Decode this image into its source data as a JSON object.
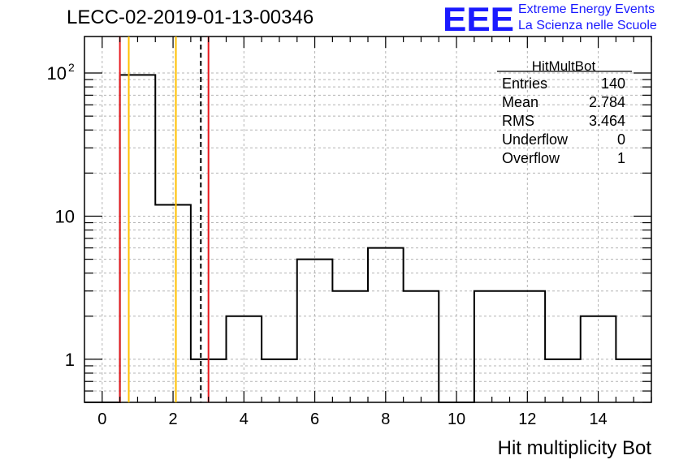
{
  "header": {
    "run_title": "LECC-02-2019-01-13-00346",
    "logo_mark": "EEE",
    "logo_line1": "Extreme Energy Events",
    "logo_line2": "La Scienza nelle Scuole"
  },
  "stats_box": {
    "title": "HitMultBot",
    "rows": [
      {
        "label": "Entries",
        "value": "140"
      },
      {
        "label": "Mean",
        "value": "2.784"
      },
      {
        "label": "RMS",
        "value": "3.464"
      },
      {
        "label": "Underflow",
        "value": "0"
      },
      {
        "label": "Overflow",
        "value": "1"
      }
    ]
  },
  "colors": {
    "histogram": "#000000",
    "red_line": "#e8191e",
    "orange_line": "#ffc000",
    "mean_line": "#000000",
    "grid": "#b4b4b4",
    "logo": "#1a1aff"
  },
  "chart_data": {
    "type": "histogram",
    "title": "",
    "xlabel": "Hit multiplicity Bot",
    "ylabel": "",
    "y_scale": "log",
    "xlim": [
      -0.5,
      15.5
    ],
    "ylim": [
      0.5,
      180
    ],
    "grid": true,
    "bin_width": 1,
    "bins": [
      {
        "center": 0,
        "count": 0
      },
      {
        "center": 1,
        "count": 97
      },
      {
        "center": 2,
        "count": 12
      },
      {
        "center": 3,
        "count": 1
      },
      {
        "center": 4,
        "count": 2
      },
      {
        "center": 5,
        "count": 1
      },
      {
        "center": 6,
        "count": 5
      },
      {
        "center": 7,
        "count": 3
      },
      {
        "center": 8,
        "count": 6
      },
      {
        "center": 9,
        "count": 3
      },
      {
        "center": 10,
        "count": 0
      },
      {
        "center": 11,
        "count": 3
      },
      {
        "center": 12,
        "count": 3
      },
      {
        "center": 13,
        "count": 1
      },
      {
        "center": 14,
        "count": 2
      },
      {
        "center": 15,
        "count": 1
      }
    ],
    "x_ticks": [
      0,
      2,
      4,
      6,
      8,
      10,
      12,
      14
    ],
    "y_tick_labels": [
      {
        "value": 1,
        "label": "1",
        "sup": ""
      },
      {
        "value": 10,
        "label": "10",
        "sup": ""
      },
      {
        "value": 100,
        "label": "10",
        "sup": "2"
      }
    ],
    "vertical_lines": [
      {
        "x": 0.5,
        "color": "red"
      },
      {
        "x": 0.75,
        "color": "orange"
      },
      {
        "x": 2.08,
        "color": "orange"
      },
      {
        "x": 2.784,
        "color": "black-dashed"
      },
      {
        "x": 3.0,
        "color": "red"
      }
    ]
  }
}
